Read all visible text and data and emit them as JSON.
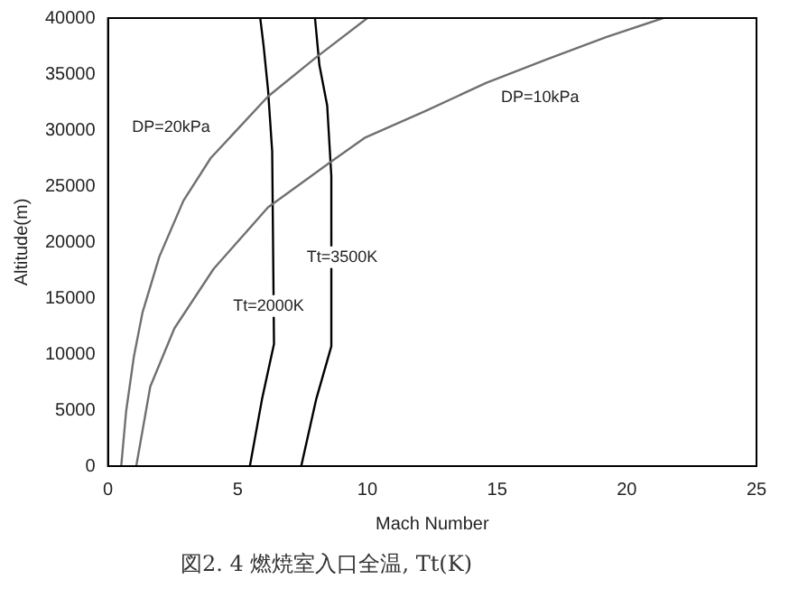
{
  "chart_data": {
    "type": "line",
    "xlabel": "Mach Number",
    "ylabel": "Altitude(m)",
    "xlim": [
      0,
      25
    ],
    "xticks": [
      0,
      5,
      10,
      15,
      20,
      25
    ],
    "ylim": [
      0,
      40000
    ],
    "yticks": [
      0,
      5000,
      10000,
      15000,
      20000,
      25000,
      30000,
      35000,
      40000
    ],
    "grid": false,
    "legend": false,
    "marker": "none",
    "line_style": "solid",
    "series": [
      {
        "name": "DP=20kPa",
        "color": "#707070",
        "x": [
          0.51,
          0.7,
          1.0,
          1.33,
          1.98,
          2.91,
          3.96,
          6.17,
          8.03,
          10.0
        ],
        "values": [
          0,
          4900,
          9800,
          13700,
          18700,
          23700,
          27500,
          33000,
          36500,
          40000
        ]
      },
      {
        "name": "DP=10kPa",
        "color": "#707070",
        "x": [
          1.09,
          1.63,
          2.56,
          4.07,
          6.17,
          8.61,
          9.89,
          12.24,
          14.57,
          16.9,
          19.2,
          21.4
        ],
        "values": [
          0,
          7100,
          12300,
          17600,
          23100,
          27200,
          29300,
          31700,
          34200,
          36300,
          38300,
          40000
        ]
      },
      {
        "name": "Tt=2000K",
        "color": "#000000",
        "x": [
          5.47,
          5.94,
          6.4,
          6.33,
          6.17,
          6.0,
          5.87
        ],
        "values": [
          0,
          6000,
          10900,
          28100,
          33600,
          37500,
          40000
        ]
      },
      {
        "name": "Tt=3500K",
        "color": "#000000",
        "x": [
          7.45,
          8.03,
          8.61,
          8.61,
          8.45,
          8.15,
          7.98
        ],
        "values": [
          0,
          6000,
          10700,
          25900,
          32200,
          35800,
          40000
        ]
      }
    ],
    "annotations": [
      "図2. 4  燃焼室入口全温, Tt(K)"
    ]
  }
}
